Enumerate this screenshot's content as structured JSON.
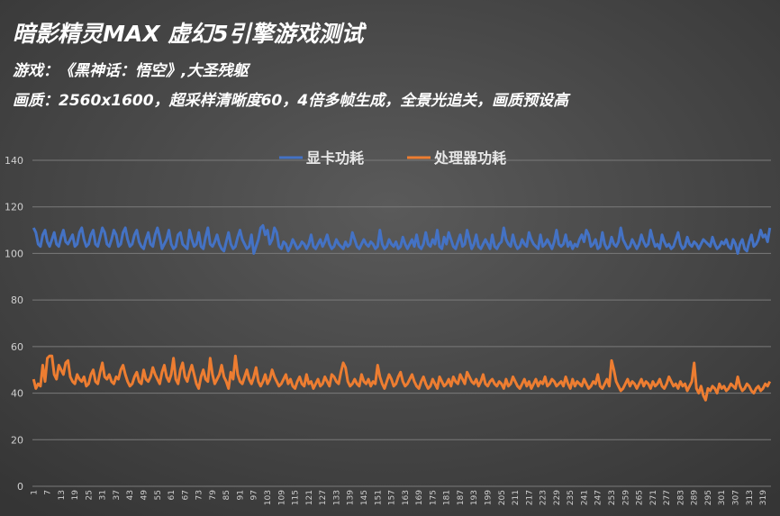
{
  "chart_data": {
    "type": "line",
    "title": "暗影精灵MAX 虚幻5引擎游戏测试",
    "subtitle": "游戏：《黑神话：悟空》,大圣残躯",
    "subtitle2": "画质：2560x1600，超采样清晰度60，4倍多帧生成，全景光追关，画质预设高",
    "legend": "top",
    "grid": true,
    "ylim": [
      0,
      140
    ],
    "yticks": [
      0,
      20,
      40,
      60,
      80,
      100,
      120,
      140
    ],
    "categories": [
      1,
      null,
      null,
      null,
      null,
      null,
      7,
      null,
      null,
      null,
      null,
      null,
      13,
      null,
      null,
      null,
      null,
      null,
      19,
      null,
      null,
      null,
      null,
      null,
      25,
      null,
      null,
      null,
      null,
      null,
      31,
      null,
      null,
      null,
      null,
      null,
      37,
      null,
      null,
      null,
      null,
      null,
      43,
      null,
      null,
      null,
      null,
      null,
      49,
      null,
      null,
      null,
      null,
      null,
      55,
      null,
      null,
      null,
      null,
      null,
      61,
      null,
      null,
      null,
      null,
      null,
      67,
      null,
      null,
      null,
      null,
      null,
      73,
      null,
      null,
      null,
      null,
      null,
      79,
      null,
      null,
      null,
      null,
      null,
      85,
      null,
      null,
      null,
      null,
      null,
      91,
      null,
      null,
      null,
      null,
      null,
      97,
      null,
      null,
      null,
      null,
      null,
      103,
      null,
      null,
      null,
      null,
      null,
      109,
      null,
      null,
      null,
      null,
      null,
      115,
      null,
      null,
      null,
      null,
      null,
      121,
      null,
      null,
      null,
      null,
      null,
      127,
      null,
      null,
      null,
      null,
      null,
      133,
      null,
      null,
      null,
      null,
      null,
      139,
      null,
      null,
      null,
      null,
      null,
      145,
      null,
      null,
      null,
      null,
      null,
      151,
      null,
      null,
      null,
      null,
      null,
      157,
      null,
      null,
      null,
      null,
      null,
      163,
      null,
      null,
      null,
      null,
      null,
      169,
      null,
      null,
      null,
      null,
      null,
      175,
      null,
      null,
      null,
      null,
      null,
      181,
      null,
      null,
      null,
      null,
      null,
      187,
      null,
      null,
      null,
      null,
      null,
      193,
      null,
      null,
      null,
      null,
      null,
      199,
      null,
      null,
      null,
      null,
      null,
      205,
      null,
      null,
      null,
      null,
      null,
      211,
      null,
      null,
      null,
      null,
      null,
      217,
      null,
      null,
      null,
      null,
      null,
      223,
      null,
      null,
      null,
      null,
      null,
      229,
      null,
      null,
      null,
      null,
      null,
      235,
      null,
      null,
      null,
      null,
      null,
      241,
      null,
      null,
      null,
      null,
      null,
      247,
      null,
      null,
      null,
      null,
      null,
      253,
      null,
      null,
      null,
      null,
      null,
      259,
      null,
      null,
      null,
      null,
      null,
      265,
      null,
      null,
      null,
      null,
      null,
      271,
      null,
      null,
      null,
      null,
      null,
      277,
      null,
      null,
      null,
      null,
      null,
      283,
      null,
      null,
      null,
      null,
      null,
      289,
      null,
      null,
      null,
      null,
      null,
      295,
      null,
      null,
      null,
      null,
      null,
      301,
      null,
      null,
      null,
      null,
      null,
      307,
      null,
      null,
      null,
      null,
      null,
      313,
      null,
      null,
      null,
      null,
      null,
      319,
      null,
      null,
      null
    ],
    "series": [
      {
        "name": "显卡功耗",
        "color": "#4472c4",
        "values": [
          111,
          109,
          104,
          103,
          108,
          110,
          105,
          103,
          106,
          109,
          104,
          103,
          107,
          110,
          105,
          104,
          106,
          108,
          103,
          104,
          109,
          111,
          106,
          103,
          104,
          108,
          110,
          104,
          103,
          107,
          111,
          109,
          104,
          103,
          106,
          110,
          108,
          103,
          104,
          109,
          111,
          106,
          103,
          104,
          108,
          110,
          105,
          103,
          102,
          106,
          109,
          104,
          103,
          108,
          111,
          107,
          102,
          104,
          106,
          110,
          104,
          102,
          103,
          108,
          109,
          104,
          103,
          102,
          110,
          106,
          103,
          104,
          109,
          103,
          102,
          107,
          111,
          104,
          103,
          105,
          108,
          104,
          102,
          101,
          105,
          109,
          104,
          102,
          103,
          107,
          110,
          106,
          104,
          102,
          103,
          108,
          100,
          103,
          106,
          111,
          112,
          108,
          110,
          104,
          106,
          111,
          109,
          103,
          102,
          105,
          104,
          101,
          103,
          106,
          104,
          102,
          103,
          105,
          104,
          102,
          104,
          108,
          103,
          102,
          104,
          106,
          103,
          105,
          108,
          104,
          102,
          103,
          106,
          104,
          103,
          102,
          105,
          103,
          104,
          109,
          106,
          103,
          102,
          104,
          106,
          104,
          103,
          105,
          104,
          102,
          103,
          110,
          104,
          102,
          103,
          106,
          104,
          103,
          105,
          102,
          103,
          107,
          104,
          102,
          104,
          106,
          103,
          108,
          103,
          102,
          104,
          109,
          104,
          103,
          106,
          104,
          110,
          103,
          102,
          107,
          104,
          109,
          106,
          103,
          102,
          105,
          108,
          103,
          104,
          110,
          106,
          102,
          104,
          108,
          103,
          102,
          104,
          106,
          104,
          102,
          108,
          103,
          102,
          104,
          105,
          111,
          106,
          104,
          103,
          108,
          104,
          102,
          103,
          106,
          104,
          103,
          109,
          106,
          104,
          103,
          102,
          108,
          103,
          104,
          106,
          104,
          102,
          105,
          110,
          104,
          103,
          104,
          108,
          103,
          105,
          102,
          104,
          103,
          106,
          108,
          105,
          110,
          108,
          103,
          104,
          106,
          102,
          103,
          109,
          104,
          102,
          103,
          107,
          104,
          103,
          105,
          111,
          106,
          104,
          102,
          103,
          106,
          104,
          102,
          104,
          108,
          105,
          103,
          104,
          110,
          106,
          103,
          104,
          102,
          108,
          105,
          103,
          104,
          102,
          103,
          106,
          109,
          104,
          102,
          103,
          107,
          104,
          103,
          105,
          104,
          102,
          104,
          106,
          105,
          104,
          103,
          107,
          104,
          102,
          103,
          105,
          104,
          106,
          103,
          102,
          106,
          104,
          100,
          104,
          106,
          102,
          101,
          105,
          108,
          103,
          104,
          106,
          110,
          107,
          108,
          105,
          111
        ]
      },
      {
        "name": "处理器功耗",
        "color": "#ed7d31",
        "values": [
          46,
          42,
          44,
          43,
          52,
          45,
          55,
          56,
          56,
          48,
          46,
          52,
          50,
          48,
          53,
          54,
          47,
          45,
          44,
          48,
          46,
          45,
          47,
          43,
          44,
          48,
          50,
          45,
          44,
          49,
          53,
          47,
          46,
          48,
          45,
          44,
          47,
          46,
          50,
          52,
          48,
          45,
          43,
          44,
          47,
          49,
          45,
          44,
          50,
          46,
          45,
          47,
          51,
          48,
          46,
          44,
          49,
          52,
          47,
          45,
          48,
          55,
          46,
          44,
          50,
          53,
          47,
          45,
          49,
          52,
          48,
          44,
          42,
          47,
          50,
          46,
          45,
          55,
          48,
          44,
          46,
          48,
          52,
          47,
          45,
          42,
          49,
          46,
          56,
          48,
          45,
          44,
          47,
          50,
          46,
          44,
          47,
          51,
          45,
          43,
          45,
          48,
          44,
          46,
          50,
          47,
          45,
          43,
          44,
          46,
          48,
          44,
          46,
          43,
          42,
          45,
          47,
          44,
          43,
          48,
          44,
          45,
          42,
          44,
          46,
          43,
          44,
          47,
          45,
          43,
          48,
          47,
          45,
          44,
          49,
          53,
          51,
          45,
          43,
          44,
          46,
          44,
          43,
          48,
          45,
          44,
          46,
          43,
          45,
          44,
          52,
          47,
          44,
          42,
          45,
          48,
          46,
          43,
          44,
          47,
          49,
          45,
          43,
          44,
          46,
          48,
          45,
          43,
          42,
          45,
          47,
          44,
          42,
          43,
          46,
          44,
          42,
          47,
          45,
          43,
          44,
          46,
          43,
          47,
          45,
          44,
          48,
          46,
          44,
          49,
          47,
          45,
          44,
          46,
          43,
          45,
          48,
          44,
          43,
          45,
          46,
          44,
          43,
          45,
          44,
          42,
          46,
          43,
          44,
          47,
          45,
          43,
          42,
          44,
          46,
          43,
          45,
          42,
          44,
          46,
          43,
          45,
          44,
          47,
          43,
          44,
          46,
          45,
          43,
          44,
          45,
          43,
          47,
          44,
          42,
          46,
          43,
          45,
          44,
          43,
          46,
          44,
          42,
          43,
          45,
          44,
          48,
          43,
          42,
          44,
          46,
          43,
          54,
          50,
          45,
          43,
          41,
          42,
          44,
          46,
          43,
          45,
          44,
          42,
          44,
          46,
          43,
          45,
          44,
          42,
          45,
          43,
          44,
          46,
          43,
          42,
          44,
          47,
          45,
          43,
          44,
          42,
          45,
          43,
          44,
          41,
          43,
          45,
          53,
          42,
          40,
          43,
          39,
          37,
          42,
          41,
          43,
          42,
          40,
          44,
          42,
          43,
          41,
          42,
          44,
          43,
          42,
          47,
          43,
          41,
          42,
          44,
          43,
          41,
          40,
          42,
          43,
          41,
          42,
          44,
          43,
          45
        ]
      }
    ]
  }
}
